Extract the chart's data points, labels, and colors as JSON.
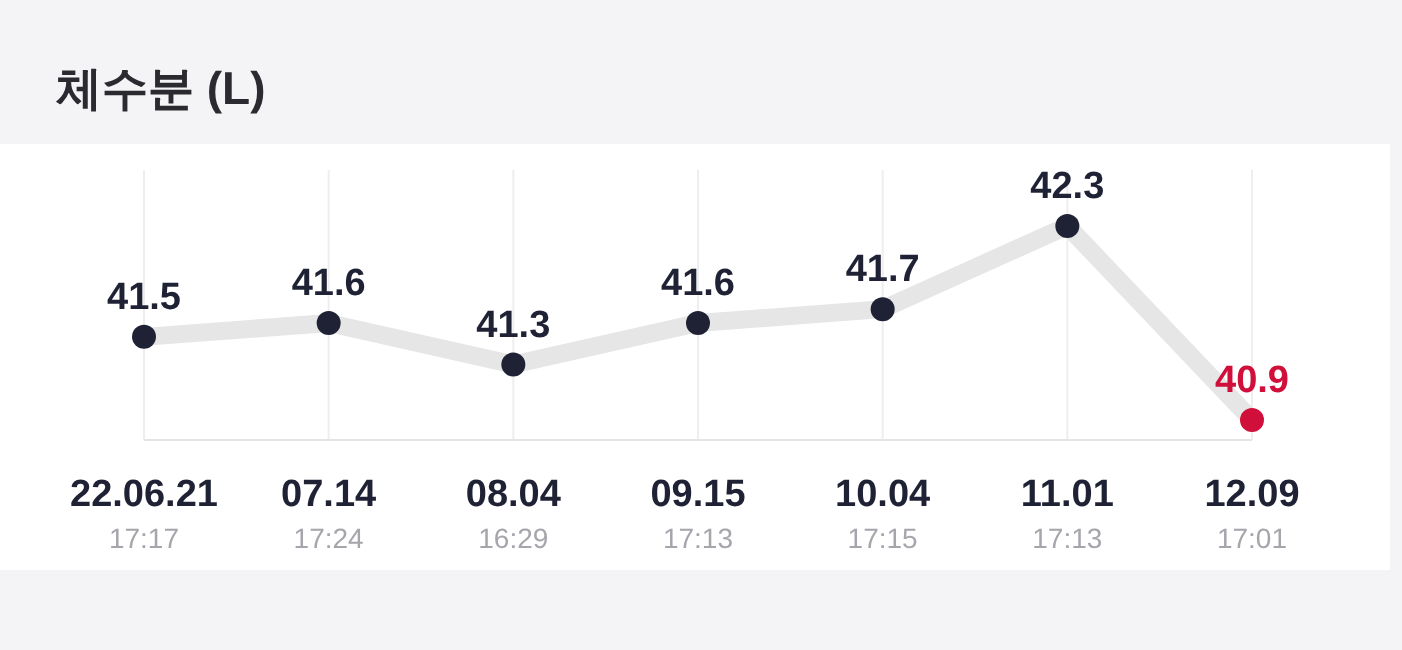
{
  "chart_data": {
    "type": "line",
    "title": "체수분 (L)",
    "categories": [
      "22.06.21\n17:17",
      "07.14\n17:24",
      "08.04\n16:29",
      "09.15\n17:13",
      "10.04\n17:15",
      "11.01\n17:13",
      "12.09\n17:01"
    ],
    "series": [
      {
        "color": "#e6e6e6",
        "values": [
          41.5,
          41.6,
          41.3,
          41.6,
          41.7,
          42.3,
          40.9
        ],
        "colors": [
          "#1f2235",
          "#1f2235",
          "#1f2235",
          "#1f2235",
          "#1f2235",
          "#1f2235",
          "#d0103a"
        ]
      }
    ],
    "data_labels": true,
    "grid": "x",
    "marker": "circle"
  }
}
